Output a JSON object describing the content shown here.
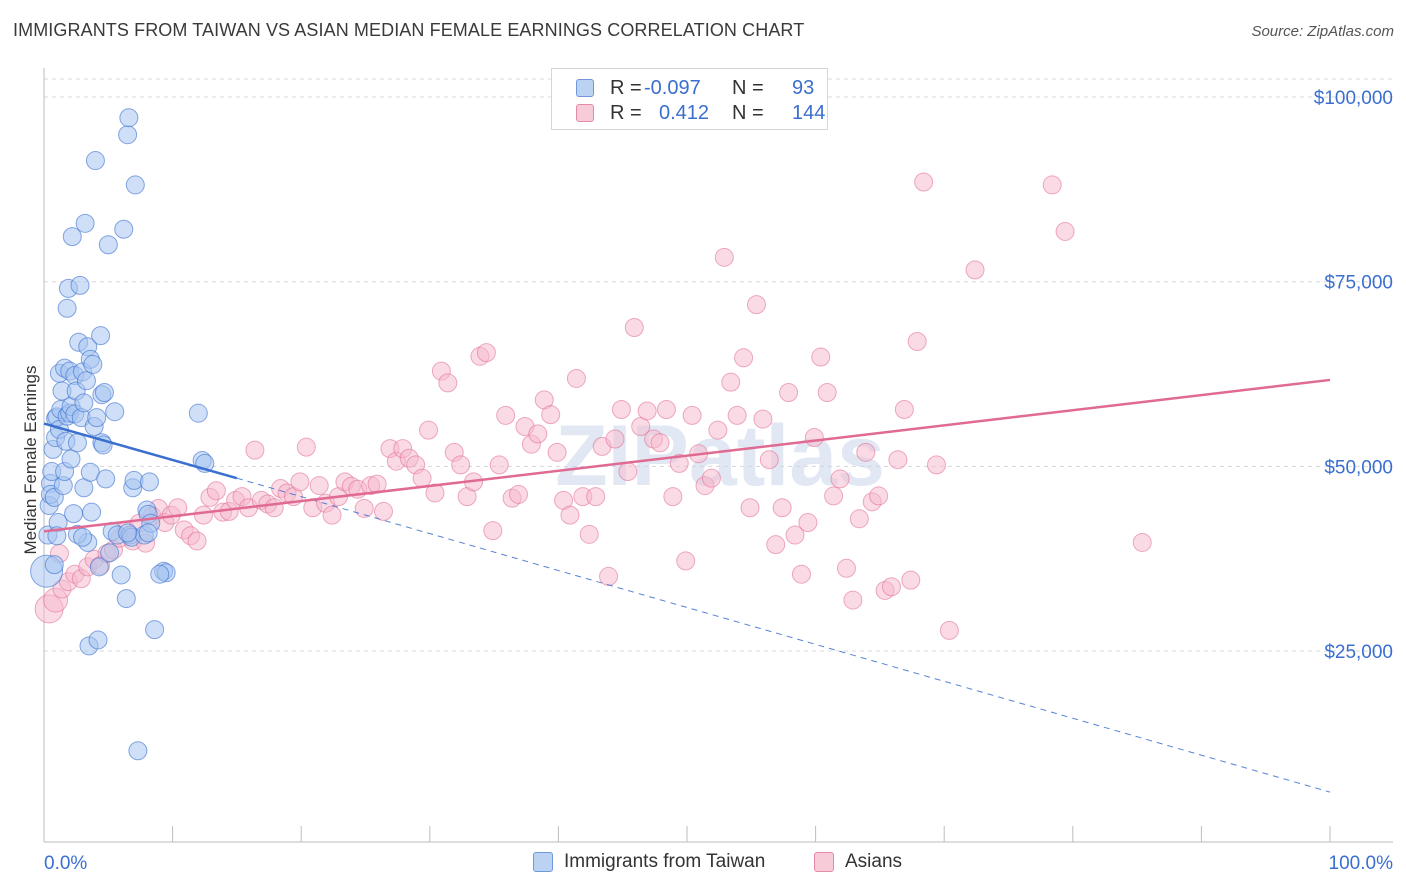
{
  "title": "IMMIGRANTS FROM TAIWAN VS ASIAN MEDIAN FEMALE EARNINGS CORRELATION CHART",
  "source": "Source: ZipAtlas.com",
  "watermark": "ZIPatlas",
  "colors": {
    "blue": "#3a6fcf",
    "blue_fill": "#a8c4f0",
    "pink": "#e06a92",
    "pink_fill": "#f6b8cb",
    "grid": "#d8d8d8",
    "axis_text": "#3a6fcf"
  },
  "legend": {
    "rows": [
      {
        "r_label": "R =",
        "r_value": "-0.097",
        "n_label": "N =",
        "n_value": "93"
      },
      {
        "r_label": "R =",
        "r_value": "0.412",
        "n_label": "N =",
        "n_value": "144"
      }
    ]
  },
  "bottom_legend": {
    "series_a": "Immigrants from Taiwan",
    "series_b": "Asians"
  },
  "chart_data": {
    "type": "scatter",
    "title": "IMMIGRANTS FROM TAIWAN VS ASIAN MEDIAN FEMALE EARNINGS CORRELATION CHART",
    "xlabel": "",
    "ylabel": "Median Female Earnings",
    "xlim": [
      0,
      100
    ],
    "ylim": [
      0,
      105000
    ],
    "x_tick_labels": [
      "0.0%",
      "100.0%"
    ],
    "y_ticks": [
      25000,
      50000,
      75000,
      100000
    ],
    "y_tick_labels": [
      "$25,000",
      "$50,000",
      "$75,000",
      "$100,000"
    ],
    "legend_position": "top-center",
    "series": [
      {
        "name": "Immigrants from Taiwan",
        "color": "#3a6fcf",
        "R": -0.097,
        "N": 93,
        "trend": {
          "x0": 0,
          "y0": 55800,
          "x1": 15,
          "y1": 48400,
          "dashed_to_x": 100,
          "dashed_to_y": 5900
        },
        "points": [
          [
            0.2,
            35800
          ],
          [
            0.3,
            40700
          ],
          [
            0.4,
            44700
          ],
          [
            0.5,
            47700
          ],
          [
            0.5,
            46200
          ],
          [
            0.6,
            49300
          ],
          [
            0.7,
            52300
          ],
          [
            0.8,
            45800
          ],
          [
            0.9,
            53900
          ],
          [
            0.9,
            56500
          ],
          [
            1.0,
            56700
          ],
          [
            1.1,
            42400
          ],
          [
            1.2,
            55000
          ],
          [
            1.2,
            62600
          ],
          [
            1.3,
            57700
          ],
          [
            1.4,
            60200
          ],
          [
            1.5,
            47400
          ],
          [
            1.6,
            63300
          ],
          [
            1.6,
            49300
          ],
          [
            1.7,
            53400
          ],
          [
            1.8,
            56800
          ],
          [
            1.8,
            71400
          ],
          [
            1.9,
            74100
          ],
          [
            2.0,
            57200
          ],
          [
            2.0,
            62900
          ],
          [
            2.1,
            58100
          ],
          [
            2.1,
            51000
          ],
          [
            2.2,
            81100
          ],
          [
            2.3,
            43600
          ],
          [
            2.4,
            62300
          ],
          [
            2.4,
            57100
          ],
          [
            2.5,
            60200
          ],
          [
            2.6,
            53200
          ],
          [
            2.7,
            66800
          ],
          [
            2.8,
            74500
          ],
          [
            2.9,
            56600
          ],
          [
            3.0,
            62800
          ],
          [
            3.1,
            58600
          ],
          [
            3.1,
            47100
          ],
          [
            3.2,
            82900
          ],
          [
            3.3,
            61600
          ],
          [
            3.4,
            66200
          ],
          [
            3.4,
            39700
          ],
          [
            3.5,
            25700
          ],
          [
            3.6,
            64500
          ],
          [
            3.6,
            49200
          ],
          [
            3.7,
            43800
          ],
          [
            3.8,
            63800
          ],
          [
            3.9,
            55400
          ],
          [
            4.0,
            91400
          ],
          [
            4.1,
            56600
          ],
          [
            4.2,
            26500
          ],
          [
            4.3,
            36400
          ],
          [
            4.4,
            67700
          ],
          [
            4.5,
            59700
          ],
          [
            4.5,
            53200
          ],
          [
            4.6,
            52900
          ],
          [
            4.7,
            60000
          ],
          [
            4.8,
            48300
          ],
          [
            5.0,
            80000
          ],
          [
            5.1,
            38300
          ],
          [
            5.3,
            41200
          ],
          [
            5.5,
            57400
          ],
          [
            5.7,
            40700
          ],
          [
            6.0,
            35300
          ],
          [
            6.2,
            82100
          ],
          [
            6.4,
            32100
          ],
          [
            6.5,
            94900
          ],
          [
            6.6,
            97200
          ],
          [
            6.7,
            40700
          ],
          [
            6.8,
            40400
          ],
          [
            6.9,
            47100
          ],
          [
            7.0,
            48100
          ],
          [
            7.1,
            88100
          ],
          [
            7.3,
            11500
          ],
          [
            7.8,
            40700
          ],
          [
            8.0,
            44100
          ],
          [
            8.1,
            43500
          ],
          [
            8.2,
            47900
          ],
          [
            8.3,
            42300
          ],
          [
            8.6,
            27900
          ],
          [
            9.3,
            35800
          ],
          [
            9.5,
            35600
          ],
          [
            12.0,
            57200
          ],
          [
            12.3,
            50800
          ],
          [
            12.5,
            50400
          ],
          [
            1.0,
            40600
          ],
          [
            2.6,
            40800
          ],
          [
            0.8,
            36700
          ],
          [
            3.0,
            40400
          ],
          [
            6.5,
            41000
          ],
          [
            8.1,
            41000
          ],
          [
            9.0,
            35400
          ]
        ]
      },
      {
        "name": "Asians",
        "color": "#e06a92",
        "R": 0.412,
        "N": 144,
        "trend": {
          "x0": 0,
          "y0": 41200,
          "x1": 100,
          "y1": 61700
        },
        "points": [
          [
            0.4,
            30700
          ],
          [
            0.9,
            31900
          ],
          [
            1.4,
            33400
          ],
          [
            1.9,
            34400
          ],
          [
            2.4,
            35400
          ],
          [
            2.9,
            34800
          ],
          [
            3.4,
            36400
          ],
          [
            3.9,
            37400
          ],
          [
            4.4,
            36600
          ],
          [
            4.9,
            38200
          ],
          [
            5.4,
            38700
          ],
          [
            5.9,
            40300
          ],
          [
            6.4,
            41300
          ],
          [
            6.9,
            39900
          ],
          [
            7.4,
            42300
          ],
          [
            7.9,
            39600
          ],
          [
            8.4,
            43300
          ],
          [
            8.9,
            44300
          ],
          [
            9.4,
            42400
          ],
          [
            9.9,
            43400
          ],
          [
            10.4,
            44400
          ],
          [
            10.9,
            41400
          ],
          [
            11.4,
            40600
          ],
          [
            11.9,
            39900
          ],
          [
            12.4,
            43400
          ],
          [
            12.9,
            45800
          ],
          [
            13.4,
            46700
          ],
          [
            13.9,
            43800
          ],
          [
            14.4,
            43900
          ],
          [
            14.9,
            45400
          ],
          [
            15.4,
            45900
          ],
          [
            15.9,
            44400
          ],
          [
            16.4,
            52200
          ],
          [
            16.9,
            45400
          ],
          [
            17.4,
            44900
          ],
          [
            17.9,
            44400
          ],
          [
            18.4,
            47000
          ],
          [
            18.9,
            46400
          ],
          [
            19.4,
            45900
          ],
          [
            19.9,
            47900
          ],
          [
            20.4,
            52600
          ],
          [
            20.9,
            44400
          ],
          [
            21.4,
            47400
          ],
          [
            21.9,
            45000
          ],
          [
            22.4,
            43400
          ],
          [
            22.9,
            45900
          ],
          [
            23.4,
            47900
          ],
          [
            23.9,
            47300
          ],
          [
            24.4,
            46900
          ],
          [
            24.9,
            44300
          ],
          [
            25.4,
            47400
          ],
          [
            25.9,
            47600
          ],
          [
            26.4,
            43900
          ],
          [
            26.9,
            52400
          ],
          [
            27.4,
            50700
          ],
          [
            27.9,
            52400
          ],
          [
            28.4,
            51100
          ],
          [
            28.9,
            50200
          ],
          [
            29.4,
            48400
          ],
          [
            29.9,
            54900
          ],
          [
            30.4,
            46400
          ],
          [
            30.9,
            62900
          ],
          [
            31.4,
            61300
          ],
          [
            31.9,
            51900
          ],
          [
            32.4,
            50200
          ],
          [
            32.9,
            45900
          ],
          [
            33.4,
            47900
          ],
          [
            33.9,
            64900
          ],
          [
            34.4,
            65400
          ],
          [
            34.9,
            41300
          ],
          [
            35.4,
            50200
          ],
          [
            35.9,
            56900
          ],
          [
            36.4,
            45700
          ],
          [
            36.9,
            46200
          ],
          [
            37.4,
            55400
          ],
          [
            37.9,
            53000
          ],
          [
            38.4,
            54400
          ],
          [
            38.9,
            59000
          ],
          [
            39.4,
            57000
          ],
          [
            39.9,
            51900
          ],
          [
            40.4,
            45400
          ],
          [
            40.9,
            43400
          ],
          [
            41.4,
            61900
          ],
          [
            41.9,
            45900
          ],
          [
            42.4,
            40800
          ],
          [
            42.9,
            45900
          ],
          [
            43.4,
            52700
          ],
          [
            43.9,
            35100
          ],
          [
            44.4,
            53700
          ],
          [
            44.9,
            57700
          ],
          [
            45.4,
            49300
          ],
          [
            45.9,
            68800
          ],
          [
            46.4,
            55400
          ],
          [
            46.9,
            57500
          ],
          [
            47.4,
            53700
          ],
          [
            47.9,
            53200
          ],
          [
            48.4,
            57700
          ],
          [
            48.9,
            45900
          ],
          [
            49.4,
            50400
          ],
          [
            49.9,
            37200
          ],
          [
            50.4,
            56900
          ],
          [
            50.9,
            51700
          ],
          [
            51.4,
            47400
          ],
          [
            51.9,
            48400
          ],
          [
            52.4,
            54900
          ],
          [
            52.9,
            78300
          ],
          [
            53.4,
            61400
          ],
          [
            53.9,
            56900
          ],
          [
            54.4,
            64700
          ],
          [
            54.9,
            44400
          ],
          [
            55.4,
            71900
          ],
          [
            55.9,
            56400
          ],
          [
            56.4,
            50900
          ],
          [
            56.9,
            39400
          ],
          [
            57.4,
            44400
          ],
          [
            57.9,
            60000
          ],
          [
            58.4,
            40700
          ],
          [
            58.9,
            35400
          ],
          [
            59.4,
            42400
          ],
          [
            59.9,
            53900
          ],
          [
            60.4,
            64800
          ],
          [
            60.9,
            60000
          ],
          [
            61.4,
            46000
          ],
          [
            61.9,
            48300
          ],
          [
            62.4,
            36200
          ],
          [
            62.9,
            31900
          ],
          [
            63.4,
            42900
          ],
          [
            63.9,
            51900
          ],
          [
            64.4,
            45200
          ],
          [
            64.9,
            46000
          ],
          [
            65.4,
            33200
          ],
          [
            65.9,
            33700
          ],
          [
            66.4,
            50900
          ],
          [
            66.9,
            57700
          ],
          [
            67.4,
            34600
          ],
          [
            67.9,
            66900
          ],
          [
            68.4,
            88500
          ],
          [
            69.4,
            50200
          ],
          [
            70.4,
            27800
          ],
          [
            72.4,
            76600
          ],
          [
            78.4,
            88100
          ],
          [
            79.4,
            81800
          ],
          [
            85.4,
            39700
          ],
          [
            1.2,
            38200
          ]
        ]
      }
    ]
  }
}
